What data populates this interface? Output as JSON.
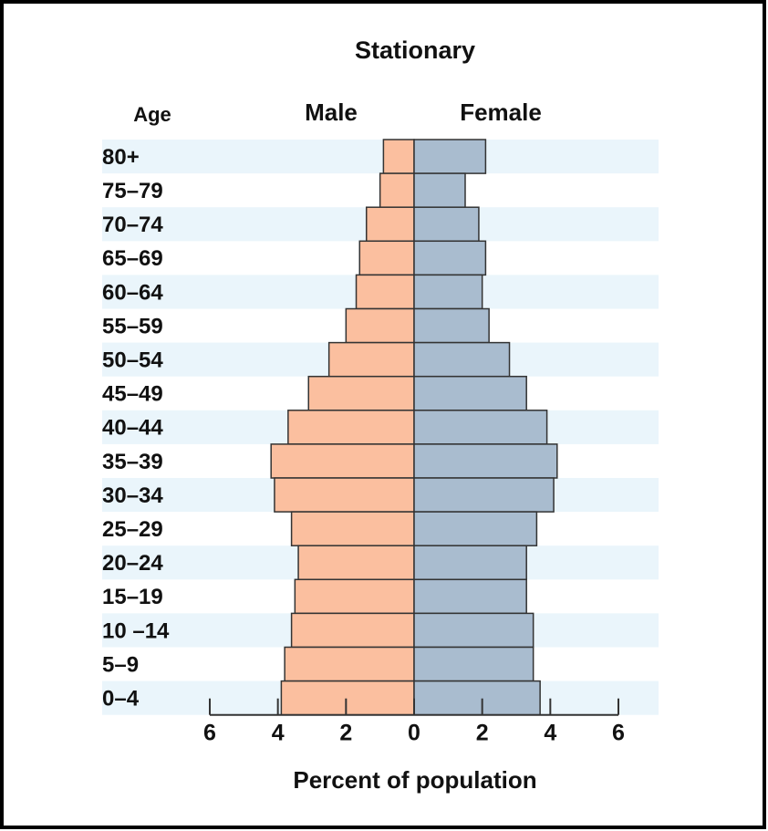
{
  "chart_data": {
    "type": "pyramid",
    "title": "Stationary",
    "x_label": "Percent of population",
    "category_label": "Age",
    "categories": [
      "80+",
      "75–79",
      "70–74",
      "65–69",
      "60–64",
      "55–59",
      "50–54",
      "45–49",
      "40–44",
      "35–39",
      "30–34",
      "25–29",
      "20–24",
      "15–19",
      "10 –14",
      "5–9",
      "0–4"
    ],
    "series": [
      {
        "name": "Male",
        "color": "#fbbf9f",
        "values": [
          0.9,
          1.0,
          1.4,
          1.6,
          1.7,
          2.0,
          2.5,
          3.1,
          3.7,
          4.2,
          4.1,
          3.6,
          3.4,
          3.5,
          3.6,
          3.8,
          3.9
        ]
      },
      {
        "name": "Female",
        "color": "#a9bccf",
        "values": [
          2.1,
          1.5,
          1.9,
          2.1,
          2.0,
          2.2,
          2.8,
          3.3,
          3.9,
          4.2,
          4.1,
          3.6,
          3.3,
          3.3,
          3.5,
          3.5,
          3.7
        ]
      }
    ],
    "xlim": [
      -6,
      6
    ],
    "xticks": [
      {
        "value": -6,
        "label": "6"
      },
      {
        "value": -4,
        "label": "4"
      },
      {
        "value": -2,
        "label": "2"
      },
      0,
      2,
      4,
      6
    ]
  }
}
